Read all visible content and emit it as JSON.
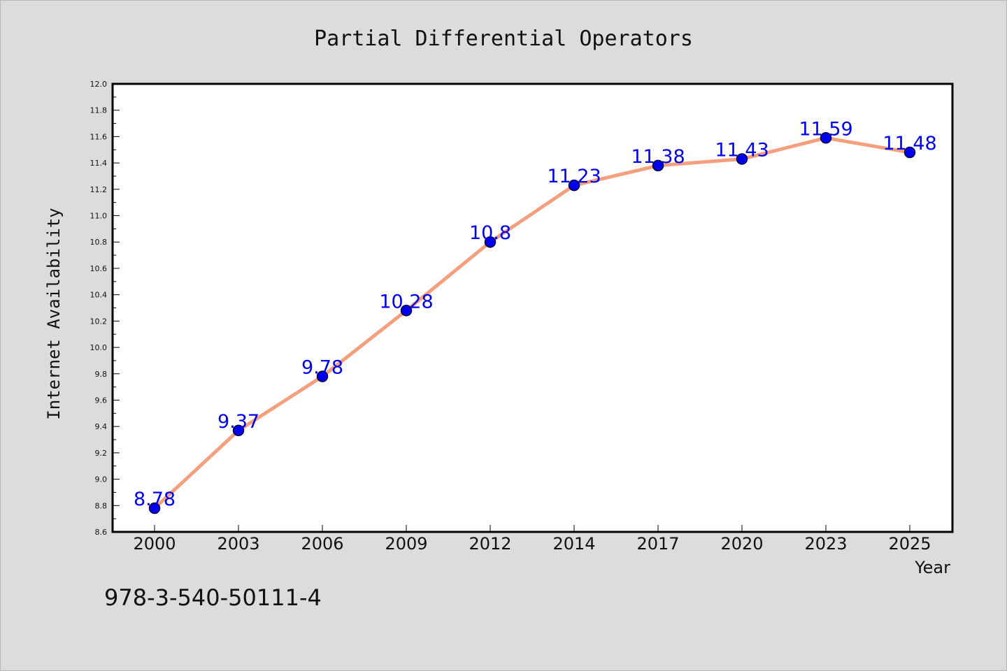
{
  "caption": "978-3-540-50111-4",
  "colors": {
    "line": "#f4a07f",
    "marker": "#0000ee",
    "marker_edge": "#000033",
    "data_label": "#0000ee"
  },
  "chart_data": {
    "type": "line",
    "title": "Partial Differential Operators",
    "xlabel": "Year",
    "ylabel": "Internet Availability",
    "categories": [
      "2000",
      "2003",
      "2006",
      "2009",
      "2012",
      "2014",
      "2017",
      "2020",
      "2023",
      "2025"
    ],
    "series": [
      {
        "values": [
          8.78,
          9.37,
          9.78,
          10.28,
          10.8,
          11.23,
          11.38,
          11.43,
          11.59,
          11.48
        ]
      }
    ],
    "data_labels": [
      "8.78",
      "9.37",
      "9.78",
      "10.28",
      "10.8",
      "11.23",
      "11.38",
      "11.43",
      "11.59",
      "11.48"
    ],
    "yticks": [
      "8.6",
      "8.8",
      "9.0",
      "9.2",
      "9.4",
      "9.6",
      "9.8",
      "10.0",
      "10.2",
      "10.4",
      "10.6",
      "10.8",
      "11.0",
      "11.2",
      "11.4",
      "11.6",
      "11.8",
      "12.0"
    ],
    "ylim": [
      8.6,
      12.0
    ],
    "grid": false,
    "legend": "none"
  }
}
